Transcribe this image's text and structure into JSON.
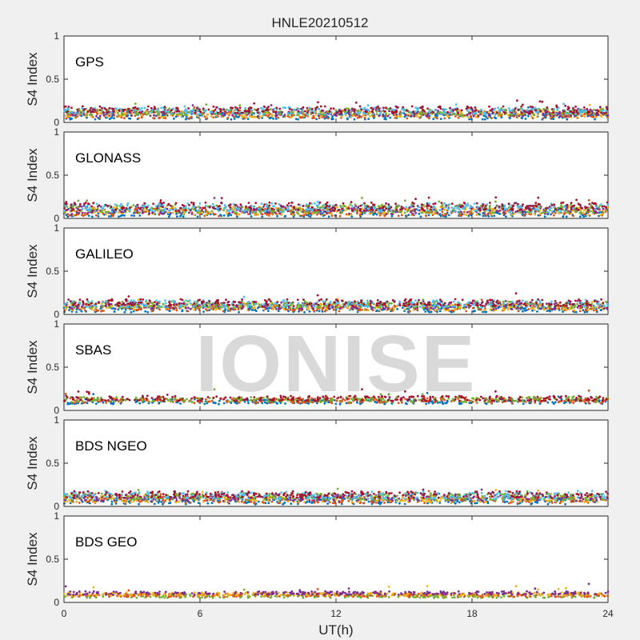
{
  "figure": {
    "title": "HNLE20210512",
    "xlabel": "UT(h)",
    "watermark": "IONISE"
  },
  "chart_data": [
    {
      "type": "scatter",
      "panel": "GPS",
      "ylabel": "S4 Index",
      "xlim": [
        0,
        24
      ],
      "ylim": [
        0,
        1
      ],
      "xticks": [
        "0",
        "6",
        "12",
        "18",
        "24"
      ],
      "yticks": [
        "0",
        "0.5",
        "1"
      ],
      "baseline": 0.11,
      "spread": 0.04,
      "colors": [
        "#0072BD",
        "#D95319",
        "#EDB120",
        "#7E2F8E",
        "#77AC30",
        "#4DBEEE",
        "#A2142F"
      ]
    },
    {
      "type": "scatter",
      "panel": "GLONASS",
      "ylabel": "S4 Index",
      "xlim": [
        0,
        24
      ],
      "ylim": [
        0,
        1
      ],
      "xticks": [
        "0",
        "6",
        "12",
        "18",
        "24"
      ],
      "yticks": [
        "0",
        "0.5",
        "1"
      ],
      "baseline": 0.1,
      "spread": 0.05,
      "colors": [
        "#0072BD",
        "#D95319",
        "#EDB120",
        "#7E2F8E",
        "#77AC30",
        "#4DBEEE",
        "#A2142F"
      ]
    },
    {
      "type": "scatter",
      "panel": "GALILEO",
      "ylabel": "S4 Index",
      "xlim": [
        0,
        24
      ],
      "ylim": [
        0,
        1
      ],
      "xticks": [
        "0",
        "6",
        "12",
        "18",
        "24"
      ],
      "yticks": [
        "0",
        "0.5",
        "1"
      ],
      "baseline": 0.1,
      "spread": 0.04,
      "colors": [
        "#0072BD",
        "#D95319",
        "#EDB120",
        "#7E2F8E",
        "#77AC30",
        "#4DBEEE",
        "#A2142F"
      ]
    },
    {
      "type": "scatter",
      "panel": "SBAS",
      "ylabel": "S4 Index",
      "xlim": [
        0,
        24
      ],
      "ylim": [
        0,
        1
      ],
      "xticks": [
        "0",
        "6",
        "12",
        "18",
        "24"
      ],
      "yticks": [
        "0",
        "0.5",
        "1"
      ],
      "baseline": 0.12,
      "spread": 0.03,
      "colors": [
        "#0072BD",
        "#D95319",
        "#77AC30",
        "#A2142F"
      ]
    },
    {
      "type": "scatter",
      "panel": "BDS NGEO",
      "ylabel": "S4 Index",
      "xlim": [
        0,
        24
      ],
      "ylim": [
        0,
        1
      ],
      "xticks": [
        "0",
        "6",
        "12",
        "18",
        "24"
      ],
      "yticks": [
        "0",
        "0.5",
        "1"
      ],
      "baseline": 0.1,
      "spread": 0.04,
      "colors": [
        "#0072BD",
        "#D95319",
        "#EDB120",
        "#7E2F8E",
        "#77AC30",
        "#4DBEEE",
        "#A2142F"
      ]
    },
    {
      "type": "scatter",
      "panel": "BDS GEO",
      "ylabel": "S4 Index",
      "xlim": [
        0,
        24
      ],
      "ylim": [
        0,
        1
      ],
      "xticks": [
        "0",
        "6",
        "12",
        "18",
        "24"
      ],
      "yticks": [
        "0",
        "0.5",
        "1"
      ],
      "baseline": 0.09,
      "spread": 0.02,
      "colors": [
        "#77AC30",
        "#D95319",
        "#EDB120",
        "#7E2F8E"
      ]
    }
  ]
}
